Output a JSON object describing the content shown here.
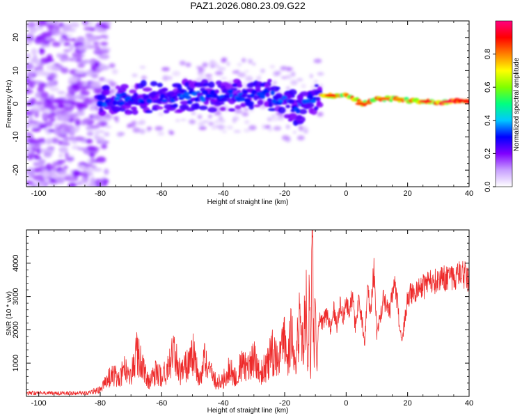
{
  "chart_data": [
    {
      "type": "heatmap",
      "title": "PAZ1.2026.080.23.09.G22",
      "xlabel": "Height of straight line (km)",
      "ylabel": "Frequency (Hz)",
      "xlim": [
        -104,
        40
      ],
      "ylim": [
        -25,
        25
      ],
      "xticks": [
        -100,
        -80,
        -60,
        -40,
        -20,
        0,
        20,
        40
      ],
      "yticks": [
        -20,
        -10,
        0,
        10,
        20
      ],
      "colorbar": {
        "label": "Normalized spectral amplitude",
        "range": [
          0,
          1
        ],
        "ticks": [
          "0.0",
          "0.2",
          "0.4",
          "0.6",
          "0.8"
        ],
        "colors": [
          "#ffffff",
          "#c8a0ff",
          "#8000ff",
          "#0000ff",
          "#00c8ff",
          "#00ff80",
          "#80ff00",
          "#ffff00",
          "#ff8000",
          "#ff0000",
          "#ff0080"
        ]
      },
      "ridge": {
        "description_points_km_hz": [
          [
            -80,
            1
          ],
          [
            -70,
            1.5
          ],
          [
            -60,
            2
          ],
          [
            -50,
            2
          ],
          [
            -40,
            2.5
          ],
          [
            -30,
            2.5
          ],
          [
            -25,
            2.5
          ],
          [
            -20,
            0.5
          ],
          [
            -16,
            -1.5
          ],
          [
            -12,
            1
          ],
          [
            -10,
            2.5
          ],
          [
            -5,
            2.5
          ],
          [
            0,
            2.5
          ],
          [
            3,
            1.5
          ],
          [
            5,
            0
          ],
          [
            10,
            1.5
          ],
          [
            15,
            1.5
          ],
          [
            20,
            1
          ],
          [
            30,
            0.5
          ],
          [
            40,
            1
          ]
        ]
      }
    },
    {
      "type": "line",
      "title": "",
      "xlabel": "Height of straight line (km)",
      "ylabel": "SNR (10 * v/v)",
      "xlim": [
        -104,
        40
      ],
      "ylim": [
        0,
        5000
      ],
      "xticks": [
        -100,
        -80,
        -60,
        -40,
        -20,
        0,
        20,
        40
      ],
      "yticks": [
        1000,
        2000,
        3000,
        4000
      ],
      "color": "#ee2a2a",
      "series": [
        {
          "name": "SNR",
          "x": [
            -104,
            -95,
            -85,
            -80,
            -76,
            -74,
            -72,
            -70,
            -68,
            -66,
            -64,
            -62,
            -60,
            -58,
            -56,
            -54,
            -52,
            -50,
            -48,
            -46,
            -44,
            -42,
            -40,
            -38,
            -36,
            -34,
            -32,
            -30,
            -28,
            -26,
            -24,
            -22,
            -20,
            -19,
            -18,
            -17,
            -16,
            -15,
            -14,
            -13,
            -12.5,
            -12,
            -11.5,
            -11,
            -10.5,
            -10,
            -9.5,
            -9,
            -8,
            -7,
            -6,
            -5,
            -4,
            -3,
            -2,
            -1,
            0,
            1,
            2,
            3,
            4,
            5,
            6,
            7,
            8,
            9,
            10,
            12,
            14,
            15,
            16,
            18,
            20,
            22,
            25,
            30,
            35,
            38,
            40
          ],
          "values": [
            100,
            100,
            100,
            200,
            700,
            500,
            900,
            600,
            1300,
            800,
            400,
            700,
            600,
            800,
            1300,
            700,
            900,
            1300,
            600,
            1100,
            700,
            400,
            500,
            800,
            600,
            1000,
            800,
            1100,
            700,
            900,
            1300,
            1000,
            1800,
            900,
            2100,
            1100,
            1500,
            2400,
            1900,
            2800,
            500,
            3600,
            800,
            4900,
            1500,
            2800,
            600,
            2300,
            2200,
            2300,
            2500,
            2000,
            2600,
            2100,
            2700,
            2400,
            2800,
            2600,
            3000,
            2100,
            2800,
            2400,
            1600,
            3200,
            2400,
            3900,
            1800,
            2900,
            2500,
            3000,
            3400,
            1600,
            3000,
            3100,
            3300,
            3500,
            3600,
            3700,
            3500
          ]
        }
      ]
    }
  ]
}
